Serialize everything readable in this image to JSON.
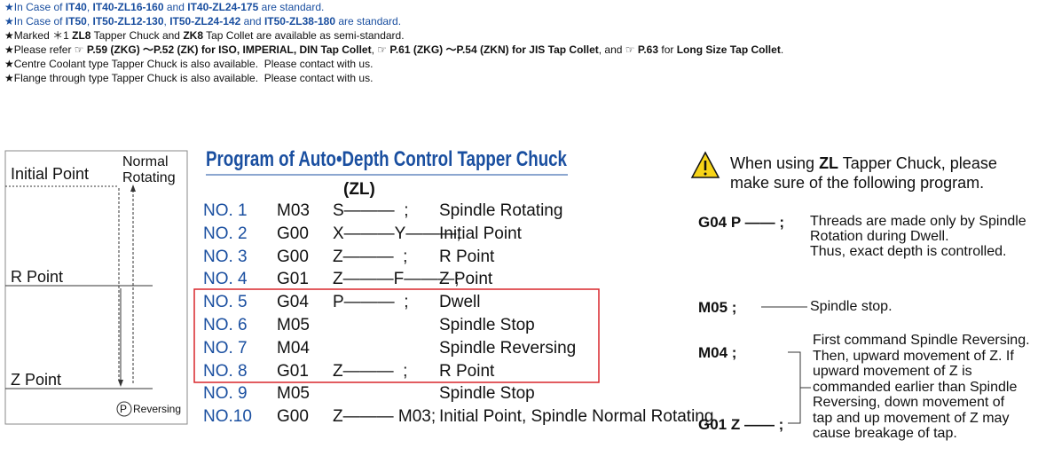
{
  "notes": [
    {
      "color": "#1a4fa0",
      "segments": [
        "★In Case of ",
        "IT40",
        ", ",
        "IT40-ZL16-160",
        " and ",
        "IT40-ZL24-175",
        " are standard."
      ]
    },
    {
      "color": "#1a4fa0",
      "segments": [
        "★In Case of ",
        "IT50",
        ", ",
        "IT50-ZL12-130",
        ", ",
        "IT50-ZL24-142",
        " and ",
        "IT50-ZL38-180",
        " are standard."
      ]
    },
    {
      "color": "#111111",
      "segments": [
        "★Marked ＊1 ",
        "ZL8",
        " Tapper Chuck and ",
        "ZK8",
        " Tap Collet are available as semi-standard."
      ]
    },
    {
      "color": "#111111",
      "segments": [
        "★Please refer ☞ ",
        "P.59 (ZKG) ～P.52 (ZK) for ISO, IMPERIAL, DIN Tap Collet",
        ", ☞ ",
        "P.61 (ZKG) ～P.54 (ZKN) for JIS Tap Collet",
        ", and ☞ ",
        "P.63",
        " for ",
        "Long Size Tap Collet",
        "."
      ]
    },
    {
      "color": "#111111",
      "segments": [
        "★Centre Coolant type Tapper Chuck is also available.  Please contact with us."
      ]
    },
    {
      "color": "#111111",
      "segments": [
        "★Flange through type Tapper Chuck is also available.  Please contact with us."
      ]
    }
  ],
  "diagram": {
    "initial_point": "Initial Point",
    "normal": "Normal",
    "rotating": "Rotating",
    "r_point": "R Point",
    "z_point": "Z Point",
    "p": "P",
    "reversing": "Reversing"
  },
  "program": {
    "title": "Program of Auto•Depth Control Tapper Chuck",
    "subtitle": "(ZL)",
    "rows": [
      {
        "no": "NO. 1",
        "code": "M03",
        "args": "S———  ;",
        "desc": "Spindle Rotating"
      },
      {
        "no": "NO. 2",
        "code": "G00",
        "args": "X———Y———;",
        "desc": "Initial Point"
      },
      {
        "no": "NO. 3",
        "code": "G00",
        "args": "Z———  ;",
        "desc": "R Point"
      },
      {
        "no": "NO. 4",
        "code": "G01",
        "args": "Z———F———;",
        "desc": "Z Point"
      },
      {
        "no": "NO. 5",
        "code": "G04",
        "args": "P———  ;",
        "desc": "Dwell"
      },
      {
        "no": "NO. 6",
        "code": "M05",
        "desc": "Spindle Stop"
      },
      {
        "no": "NO. 7",
        "code": "M04",
        "desc": "Spindle Reversing"
      },
      {
        "no": "NO. 8",
        "code": "G01",
        "args": "Z———  ;",
        "desc": "R Point"
      },
      {
        "no": "NO. 9",
        "code": "M05",
        "desc": "Spindle Stop"
      },
      {
        "no": "NO.10",
        "code": "G00",
        "args": "Z——— M03;",
        "desc": "Initial Point, Spindle Normal Rotating"
      }
    ]
  },
  "warning": {
    "segments": [
      "When using ",
      "ZL",
      " Tapper Chuck, please"
    ],
    "line2": "make sure of the following program."
  },
  "items": [
    {
      "code": "G04 P —— ;",
      "lines": [
        "Threads are made only by Spindle",
        "Rotation during Dwell.",
        "Thus, exact depth is controlled."
      ]
    },
    {
      "code": "M05 ;",
      "lines": [
        "Spindle stop."
      ]
    },
    {
      "code": "M04 ;"
    },
    {
      "code": "G01 Z —— ;"
    }
  ],
  "shared_note": [
    "First command Spindle Reversing.",
    "Then, upward movement of Z. If",
    "upward movement of Z is",
    "commanded earlier than Spindle",
    "Reversing, down movement of",
    "tap and up movement of Z may",
    "cause breakage of tap."
  ]
}
